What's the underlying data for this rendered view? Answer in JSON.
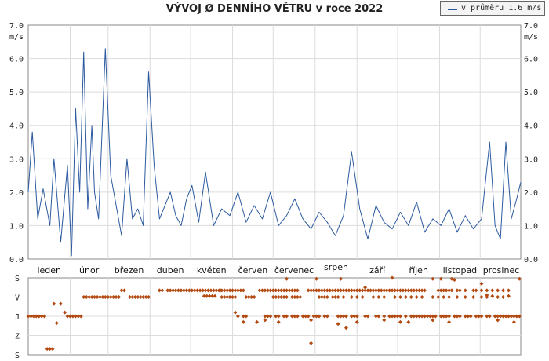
{
  "chart_data": {
    "type": "line",
    "title": "VÝVOJ Ø DENNÍHO VĚTRU v roce 2022",
    "ylabel": "m/s",
    "ylim": [
      0,
      7
    ],
    "yticks": [
      "0.0",
      "1.0",
      "2.0",
      "3.0",
      "4.0",
      "5.0",
      "6.0",
      "7.0"
    ],
    "series": [
      {
        "name": "v průměru 1.6 m/s",
        "color": "#2c5aa0",
        "x": [
          1,
          4,
          8,
          12,
          17,
          20,
          25,
          30,
          33,
          36,
          39,
          42,
          45,
          48,
          50,
          53,
          58,
          62,
          66,
          70,
          74,
          78,
          82,
          86,
          90,
          94,
          98,
          102,
          106,
          110,
          114,
          118,
          122,
          127,
          132,
          138,
          144,
          150,
          156,
          162,
          168,
          174,
          180,
          186,
          192,
          198,
          204,
          210,
          216,
          222,
          228,
          234,
          240,
          246,
          252,
          258,
          264,
          270,
          276,
          282,
          288,
          294,
          300,
          306,
          312,
          318,
          324,
          330,
          336,
          342,
          346,
          350,
          354,
          358,
          362,
          365
        ],
        "values": [
          2.0,
          3.8,
          1.2,
          2.1,
          1.0,
          3.0,
          0.5,
          2.8,
          0.1,
          4.5,
          2.0,
          6.2,
          1.5,
          4.0,
          2.0,
          1.2,
          6.3,
          2.5,
          1.6,
          0.7,
          3.0,
          1.2,
          1.5,
          1.0,
          5.6,
          2.8,
          1.2,
          1.6,
          2.0,
          1.3,
          1.0,
          1.8,
          2.2,
          1.1,
          2.6,
          1.0,
          1.5,
          1.3,
          2.0,
          1.1,
          1.6,
          1.2,
          2.0,
          1.0,
          1.3,
          1.8,
          1.2,
          0.9,
          1.4,
          1.1,
          0.7,
          1.3,
          3.2,
          1.5,
          0.6,
          1.6,
          1.1,
          0.9,
          1.4,
          1.0,
          1.7,
          0.8,
          1.2,
          1.0,
          1.5,
          0.8,
          1.3,
          0.9,
          1.2,
          3.5,
          1.0,
          0.6,
          3.5,
          1.2,
          1.8,
          2.3
        ]
      }
    ],
    "months": [
      "leden",
      "únor",
      "březen",
      "duben",
      "květen",
      "červen",
      "červenec",
      "srpen",
      "září",
      "říjen",
      "listopad",
      "prosinec"
    ],
    "direction_chart": {
      "type": "scatter",
      "y_categories": [
        "S",
        "V",
        "J",
        "Z",
        "S"
      ],
      "color": "#b34a12",
      "points": [
        [
          1,
          2
        ],
        [
          3,
          2
        ],
        [
          5,
          2
        ],
        [
          7,
          2
        ],
        [
          9,
          2
        ],
        [
          11,
          2
        ],
        [
          13,
          2
        ],
        [
          15,
          0.3
        ],
        [
          17,
          0.3
        ],
        [
          19,
          0.3
        ],
        [
          20,
          2.65
        ],
        [
          22,
          1.65
        ],
        [
          25,
          2.65
        ],
        [
          28,
          2.2
        ],
        [
          30,
          2
        ],
        [
          32,
          2
        ],
        [
          34,
          2
        ],
        [
          36,
          2
        ],
        [
          38,
          2
        ],
        [
          40,
          2
        ],
        [
          42,
          3
        ],
        [
          44,
          3
        ],
        [
          46,
          3
        ],
        [
          48,
          3
        ],
        [
          50,
          3
        ],
        [
          52,
          3
        ],
        [
          54,
          3
        ],
        [
          56,
          3
        ],
        [
          58,
          3
        ],
        [
          60,
          3
        ],
        [
          62,
          3
        ],
        [
          64,
          3
        ],
        [
          66,
          3
        ],
        [
          68,
          3
        ],
        [
          70,
          3.35
        ],
        [
          72,
          3.35
        ],
        [
          76,
          3
        ],
        [
          78,
          3
        ],
        [
          80,
          3
        ],
        [
          82,
          3
        ],
        [
          84,
          3
        ],
        [
          86,
          3
        ],
        [
          88,
          3
        ],
        [
          90,
          3
        ],
        [
          98,
          3.35
        ],
        [
          100,
          3.35
        ],
        [
          104,
          3.35
        ],
        [
          106,
          3.35
        ],
        [
          108,
          3.35
        ],
        [
          110,
          3.35
        ],
        [
          112,
          3.35
        ],
        [
          114,
          3.35
        ],
        [
          116,
          3.35
        ],
        [
          118,
          3.35
        ],
        [
          120,
          3.35
        ],
        [
          122,
          3.35
        ],
        [
          124,
          3.35
        ],
        [
          126,
          3.35
        ],
        [
          128,
          3.35
        ],
        [
          130,
          3.35
        ],
        [
          132,
          3.35
        ],
        [
          134,
          3.35
        ],
        [
          136,
          3.35
        ],
        [
          138,
          3.35
        ],
        [
          140,
          3.35
        ],
        [
          142,
          3.35
        ],
        [
          144,
          3.35
        ],
        [
          146,
          3.35
        ],
        [
          148,
          3.35
        ],
        [
          150,
          3.35
        ],
        [
          152,
          3.35
        ],
        [
          154,
          3.35
        ],
        [
          156,
          3.35
        ],
        [
          158,
          3.35
        ],
        [
          160,
          3.35
        ],
        [
          131,
          3.05
        ],
        [
          133,
          3.05
        ],
        [
          135,
          3.05
        ],
        [
          137,
          3.05
        ],
        [
          139,
          3.05
        ],
        [
          143,
          3.35
        ],
        [
          162,
          3
        ],
        [
          164,
          3
        ],
        [
          166,
          3
        ],
        [
          168,
          3
        ],
        [
          144,
          3
        ],
        [
          146,
          3
        ],
        [
          148,
          3
        ],
        [
          150,
          3
        ],
        [
          152,
          3
        ],
        [
          154,
          3
        ],
        [
          154,
          2.2
        ],
        [
          156,
          2
        ],
        [
          160,
          2
        ],
        [
          162,
          2
        ],
        [
          172,
          3.35
        ],
        [
          174,
          3.35
        ],
        [
          176,
          3.35
        ],
        [
          178,
          3.35
        ],
        [
          180,
          3.35
        ],
        [
          182,
          3.35
        ],
        [
          184,
          3.35
        ],
        [
          186,
          3.35
        ],
        [
          188,
          3.35
        ],
        [
          190,
          3.35
        ],
        [
          192,
          3.35
        ],
        [
          194,
          3.35
        ],
        [
          196,
          3.35
        ],
        [
          198,
          3.35
        ],
        [
          200,
          3.35
        ],
        [
          182,
          3
        ],
        [
          184,
          3
        ],
        [
          186,
          3
        ],
        [
          188,
          3
        ],
        [
          190,
          3
        ],
        [
          192,
          3
        ],
        [
          196,
          3
        ],
        [
          198,
          3
        ],
        [
          200,
          3
        ],
        [
          202,
          3
        ],
        [
          176,
          2
        ],
        [
          178,
          2
        ],
        [
          180,
          2
        ],
        [
          184,
          2
        ],
        [
          186,
          2
        ],
        [
          190,
          2
        ],
        [
          192,
          2
        ],
        [
          196,
          2
        ],
        [
          198,
          2
        ],
        [
          200,
          2
        ],
        [
          204,
          2
        ],
        [
          206,
          2
        ],
        [
          208,
          2
        ],
        [
          212,
          2
        ],
        [
          214,
          2
        ],
        [
          216,
          2
        ],
        [
          220,
          2
        ],
        [
          222,
          2
        ],
        [
          230,
          2
        ],
        [
          232,
          2
        ],
        [
          234,
          2
        ],
        [
          236,
          2
        ],
        [
          240,
          2
        ],
        [
          242,
          2
        ],
        [
          244,
          2
        ],
        [
          250,
          2
        ],
        [
          252,
          2
        ],
        [
          258,
          2
        ],
        [
          260,
          2
        ],
        [
          264,
          2
        ],
        [
          268,
          2
        ],
        [
          270,
          2
        ],
        [
          272,
          2
        ],
        [
          274,
          2
        ],
        [
          276,
          2
        ],
        [
          280,
          2
        ],
        [
          284,
          2
        ],
        [
          286,
          2
        ],
        [
          288,
          2
        ],
        [
          290,
          2
        ],
        [
          292,
          2
        ],
        [
          294,
          2
        ],
        [
          296,
          2
        ],
        [
          298,
          2
        ],
        [
          300,
          2
        ],
        [
          302,
          2
        ],
        [
          306,
          2
        ],
        [
          308,
          2
        ],
        [
          310,
          2
        ],
        [
          312,
          2
        ],
        [
          316,
          2
        ],
        [
          318,
          2
        ],
        [
          320,
          2
        ],
        [
          324,
          2
        ],
        [
          326,
          2
        ],
        [
          328,
          2
        ],
        [
          332,
          2
        ],
        [
          334,
          2
        ],
        [
          336,
          2
        ],
        [
          340,
          2
        ],
        [
          342,
          2
        ],
        [
          346,
          2
        ],
        [
          348,
          2
        ],
        [
          350,
          2
        ],
        [
          352,
          2
        ],
        [
          354,
          2
        ],
        [
          356,
          2
        ],
        [
          358,
          2
        ],
        [
          360,
          2
        ],
        [
          362,
          2
        ],
        [
          364,
          2
        ],
        [
          208,
          3.35
        ],
        [
          210,
          3.35
        ],
        [
          212,
          3.35
        ],
        [
          214,
          3.35
        ],
        [
          216,
          3.35
        ],
        [
          218,
          3.35
        ],
        [
          220,
          3.35
        ],
        [
          222,
          3.35
        ],
        [
          224,
          3.35
        ],
        [
          226,
          3.35
        ],
        [
          228,
          3.35
        ],
        [
          230,
          3.35
        ],
        [
          232,
          3.35
        ],
        [
          234,
          3.35
        ],
        [
          236,
          3.35
        ],
        [
          238,
          3.35
        ],
        [
          240,
          3.35
        ],
        [
          242,
          3.35
        ],
        [
          244,
          3.35
        ],
        [
          246,
          3.35
        ],
        [
          248,
          3.35
        ],
        [
          250,
          3.35
        ],
        [
          252,
          3.35
        ],
        [
          254,
          3.35
        ],
        [
          256,
          3.35
        ],
        [
          258,
          3.35
        ],
        [
          260,
          3.35
        ],
        [
          262,
          3.35
        ],
        [
          264,
          3.35
        ],
        [
          266,
          3.35
        ],
        [
          268,
          3.35
        ],
        [
          270,
          3.35
        ],
        [
          272,
          3.35
        ],
        [
          274,
          3.35
        ],
        [
          276,
          3.35
        ],
        [
          278,
          3.35
        ],
        [
          280,
          3.35
        ],
        [
          282,
          3.35
        ],
        [
          284,
          3.35
        ],
        [
          286,
          3.35
        ],
        [
          288,
          3.35
        ],
        [
          290,
          3.35
        ],
        [
          292,
          3.35
        ],
        [
          294,
          3.35
        ],
        [
          216,
          3
        ],
        [
          218,
          3
        ],
        [
          220,
          3
        ],
        [
          222,
          3
        ],
        [
          226,
          3
        ],
        [
          228,
          3
        ],
        [
          230,
          3
        ],
        [
          234,
          3
        ],
        [
          240,
          3
        ],
        [
          244,
          3
        ],
        [
          248,
          3
        ],
        [
          256,
          3
        ],
        [
          260,
          3
        ],
        [
          264,
          3
        ],
        [
          272,
          3
        ],
        [
          276,
          3
        ],
        [
          280,
          3
        ],
        [
          284,
          3
        ],
        [
          288,
          3
        ],
        [
          292,
          3
        ],
        [
          300,
          3
        ],
        [
          304,
          3
        ],
        [
          308,
          3
        ],
        [
          312,
          3
        ],
        [
          318,
          3
        ],
        [
          324,
          3
        ],
        [
          330,
          3
        ],
        [
          336,
          3
        ],
        [
          340,
          3
        ],
        [
          348,
          3
        ],
        [
          352,
          3
        ],
        [
          304,
          3.35
        ],
        [
          306,
          3.35
        ],
        [
          308,
          3.35
        ],
        [
          310,
          3.35
        ],
        [
          312,
          3.35
        ],
        [
          314,
          3.35
        ],
        [
          318,
          3.35
        ],
        [
          320,
          3.35
        ],
        [
          324,
          3.35
        ],
        [
          330,
          3.35
        ],
        [
          332,
          3.35
        ],
        [
          336,
          3.35
        ],
        [
          340,
          3.35
        ],
        [
          344,
          3.35
        ],
        [
          348,
          3.35
        ],
        [
          352,
          3.35
        ],
        [
          356,
          3.35
        ],
        [
          340,
          3.1
        ],
        [
          344,
          3.05
        ],
        [
          356,
          3.05
        ],
        [
          160,
          1.7
        ],
        [
          170,
          1.7
        ],
        [
          176,
          1.8
        ],
        [
          186,
          1.7
        ],
        [
          210,
          1.8
        ],
        [
          230,
          1.6
        ],
        [
          236,
          1.4
        ],
        [
          244,
          1.7
        ],
        [
          264,
          1.8
        ],
        [
          276,
          1.7
        ],
        [
          282,
          1.7
        ],
        [
          300,
          1.8
        ],
        [
          312,
          1.7
        ],
        [
          348,
          1.8
        ],
        [
          360,
          1.7
        ],
        [
          210,
          0.6
        ],
        [
          192,
          3.95
        ],
        [
          214,
          3.95
        ],
        [
          232,
          3.95
        ],
        [
          300,
          3.95
        ],
        [
          306,
          3.95
        ],
        [
          314,
          3.95
        ],
        [
          364,
          3.95
        ],
        [
          270,
          4.0
        ],
        [
          250,
          3.5
        ],
        [
          316,
          3.9
        ],
        [
          336,
          3.7
        ]
      ]
    }
  }
}
